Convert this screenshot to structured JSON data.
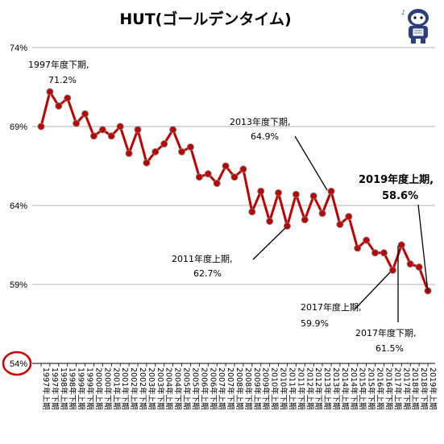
{
  "chart_data": {
    "type": "line",
    "title": "HUT(ゴールデンタイム)",
    "xlabel": "",
    "ylabel": "",
    "ylim": [
      54,
      74
    ],
    "yticks": [
      "74%",
      "69%",
      "64%",
      "59%",
      "54%"
    ],
    "categories": [
      "1997年上期",
      "1997年下期",
      "1998年上期",
      "1998年下期",
      "1999年上期",
      "1999年下期",
      "2000年上期",
      "2000年下期",
      "2001年上期",
      "2001年下期",
      "2002年上期",
      "2002年下期",
      "2003年上期",
      "2003年下期",
      "2004年上期",
      "2004年下期",
      "2005年上期",
      "2005年下期",
      "2006年上期",
      "2006年下期",
      "2007年上期",
      "2007年下期",
      "2008年上期",
      "2008年下期",
      "2009年上期",
      "2009年下期",
      "2010年上期",
      "2010年下期",
      "2011年上期",
      "2011年下期",
      "2012年上期",
      "2012年下期",
      "2013年上期",
      "2013年下期",
      "2014年上期",
      "2014年下期",
      "2015年上期",
      "2015年下期",
      "2016年上期",
      "2016年下期",
      "2017年上期",
      "2017年下期",
      "2018年上期",
      "2018年下期",
      "2019年上期"
    ],
    "series": [
      {
        "values": [
          69.0,
          71.2,
          70.3,
          70.8,
          69.2,
          69.8,
          68.4,
          68.8,
          68.4,
          69.0,
          67.3,
          68.8,
          66.7,
          67.4,
          67.9,
          68.8,
          67.4,
          67.7,
          65.8,
          66.0,
          65.4,
          66.5,
          65.8,
          66.3,
          63.6,
          64.9,
          63.0,
          64.8,
          62.7,
          64.7,
          63.1,
          64.6,
          63.5,
          64.9,
          62.8,
          63.3,
          61.3,
          61.8,
          61.0,
          61.0,
          59.9,
          61.5,
          60.3,
          60.1,
          58.6
        ]
      }
    ],
    "annotations": [
      {
        "label": "1997年度下期,",
        "value": "71.2%"
      },
      {
        "label": "2013年度下期,",
        "value": "64.9%"
      },
      {
        "label": "2011年度上期,",
        "value": "62.7%"
      },
      {
        "label": "2019年度上期,",
        "value": "58.6%"
      },
      {
        "label": "2017年度上期,",
        "value": "59.9%"
      },
      {
        "label": "2017年度下期,",
        "value": "61.5%"
      }
    ],
    "grid": true,
    "line_color": "#c00000",
    "marker_color": "#c00000",
    "highlight_circle_color": "#cc0000"
  }
}
